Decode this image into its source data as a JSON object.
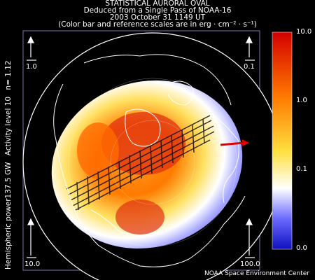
{
  "title": {
    "line1": "STATISTICAL AURORAL OVAL",
    "line2": "Deduced from a Single Pass of NOAA-16",
    "line3": "2003 October 31 1149 UT",
    "line4": "(Color bar and reference scales are in erg · cm⁻² · s⁻¹)"
  },
  "side_labels": {
    "power": "Hemispheric power137.5 GW",
    "activity": "Activity level 10",
    "n": "n=  1.12"
  },
  "reference_scales": {
    "top_left": "1.0",
    "top_right": "0.1",
    "bottom_left": "10.0",
    "bottom_right": "100.0"
  },
  "colorbar": {
    "labels": [
      "10.0",
      "1.0",
      "0.1",
      "0.0"
    ],
    "colors": [
      "#d40000",
      "#ff7a00",
      "#ffe040",
      "#ffffff",
      "#6a6aff",
      "#1010c0"
    ]
  },
  "credit": "NOAA Space Environment Center",
  "colors": {
    "background": "#000000",
    "map_lines": "#ffffff",
    "oval_outer": "#9a9aff",
    "oval_inner": "#ffe060",
    "oval_core": "#ff7a00",
    "oval_hot": "#d01010",
    "sun_arrow": "#e00000"
  }
}
